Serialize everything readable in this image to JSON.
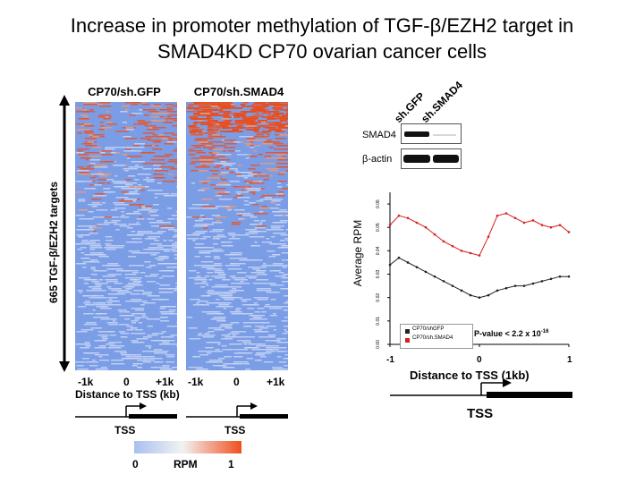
{
  "title": {
    "line1": "Increase in promoter methylation of TGF-β/EZH2 target in",
    "line2": "SMAD4KD CP70 ovarian cancer cells"
  },
  "heatmap": {
    "y_label": "665 TGF-β/EZH2 targets",
    "panel_left_title": "CP70/sh.GFP",
    "panel_right_title": "CP70/sh.SMAD4",
    "ticks": [
      "-1k",
      "0",
      "+1k"
    ],
    "x_label": "Distance to TSS (kb)",
    "tss_label": "TSS",
    "colorbar": {
      "label": "RPM",
      "min": "0",
      "max": "1",
      "low_color": "#7a9de6",
      "high_color": "#f0501e"
    }
  },
  "western_blot": {
    "lanes": [
      "sh.GFP",
      "sh.SMAD4"
    ],
    "rows": [
      "SMAD4",
      "β-actin"
    ]
  },
  "profile": {
    "y_label": "Average RPM",
    "x_label": "Distance to TSS (1kb)",
    "x_ticks": [
      "-1",
      "0",
      "1"
    ],
    "y_ticks": [
      "0.00",
      "0.01",
      "0.02",
      "0.03",
      "0.04",
      "0.05",
      "0.06"
    ],
    "legend": [
      "CP70/shGFP",
      "CP70/sh.SMAD4"
    ],
    "pvalue": "P-value < 2.2 x 10",
    "pvalue_exp": "-16",
    "tss_label": "TSS",
    "colors": {
      "gfp": "#222222",
      "smad4": "#d42020"
    }
  },
  "chart_data": {
    "type": "line",
    "xlabel": "Distance to TSS (1kb)",
    "ylabel": "Average RPM",
    "xlim": [
      -1,
      1
    ],
    "ylim": [
      0,
      0.065
    ],
    "series": [
      {
        "name": "CP70/shGFP",
        "x": [
          -1,
          -0.9,
          -0.8,
          -0.7,
          -0.6,
          -0.5,
          -0.4,
          -0.3,
          -0.2,
          -0.1,
          0,
          0.1,
          0.2,
          0.3,
          0.4,
          0.5,
          0.6,
          0.7,
          0.8,
          0.9,
          1
        ],
        "values": [
          0.034,
          0.037,
          0.035,
          0.033,
          0.031,
          0.029,
          0.027,
          0.025,
          0.023,
          0.021,
          0.02,
          0.021,
          0.023,
          0.024,
          0.025,
          0.025,
          0.026,
          0.027,
          0.028,
          0.029,
          0.029
        ]
      },
      {
        "name": "CP70/sh.SMAD4",
        "x": [
          -1,
          -0.9,
          -0.8,
          -0.7,
          -0.6,
          -0.5,
          -0.4,
          -0.3,
          -0.2,
          -0.1,
          0,
          0.1,
          0.2,
          0.3,
          0.4,
          0.5,
          0.6,
          0.7,
          0.8,
          0.9,
          1
        ],
        "values": [
          0.051,
          0.055,
          0.054,
          0.052,
          0.05,
          0.047,
          0.044,
          0.042,
          0.04,
          0.039,
          0.038,
          0.046,
          0.055,
          0.056,
          0.054,
          0.052,
          0.053,
          0.051,
          0.05,
          0.051,
          0.048
        ]
      }
    ]
  }
}
